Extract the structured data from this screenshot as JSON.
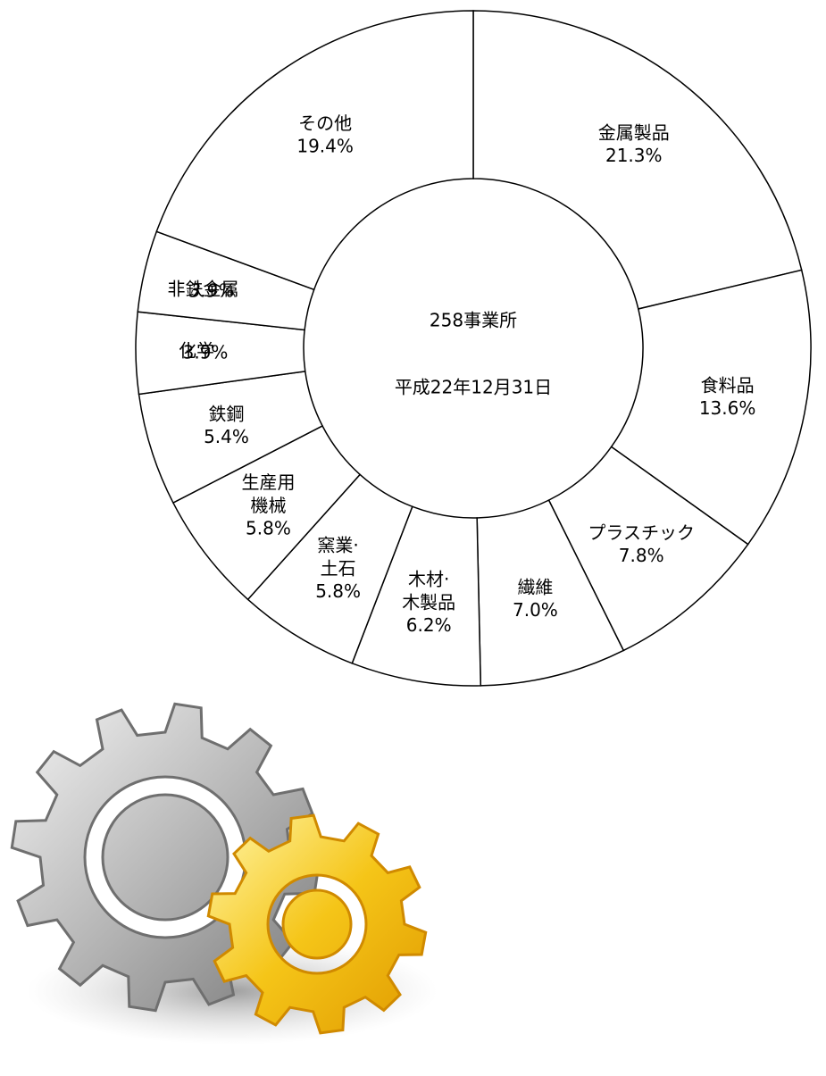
{
  "chart_data": {
    "type": "donut",
    "center_label": "258事業所",
    "center_sublabel": "平成22年12月31日",
    "categories": [
      "金属製品",
      "食料品",
      "プラスチック",
      "繊維",
      "木材·\n木製品",
      "窯業·\n土石",
      "生産用\n機械",
      "鉄鋼",
      "化学",
      "非鉄金属",
      "その他"
    ],
    "values": [
      21.3,
      13.6,
      7.8,
      7.0,
      6.2,
      5.8,
      5.8,
      5.4,
      3.9,
      3.9,
      19.4
    ],
    "value_labels": [
      "21.3%",
      "13.6%",
      "7.8%",
      "7.0%",
      "6.2%",
      "5.8%",
      "5.8%",
      "5.4%",
      "3.9%",
      "3.9%",
      "19.4%"
    ],
    "color": "#ffffff"
  }
}
